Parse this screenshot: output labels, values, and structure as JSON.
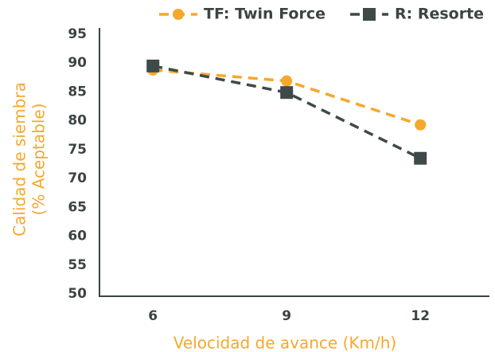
{
  "chart_data": {
    "type": "line",
    "x_label": "Velocidad de avance (Km/h)",
    "y_label": [
      "Calidad de siembra",
      "(% Aceptable)"
    ],
    "x": [
      6,
      9,
      12
    ],
    "xlim": [
      4.8,
      13.55
    ],
    "xticks": [
      6,
      9,
      12
    ],
    "ylim": [
      50,
      95
    ],
    "yticks": [
      50,
      55,
      60,
      65,
      70,
      75,
      80,
      85,
      90,
      95
    ],
    "legend": "top-right",
    "grid": false,
    "series": [
      {
        "name": "TF: Twin Force",
        "color": "#f5a82c",
        "marker": "circle",
        "values": [
          88.8,
          86.9,
          79.3
        ]
      },
      {
        "name": "R: Resorte",
        "color": "#3e4a4a",
        "marker": "square",
        "values": [
          89.5,
          84.9,
          73.5
        ]
      }
    ]
  }
}
